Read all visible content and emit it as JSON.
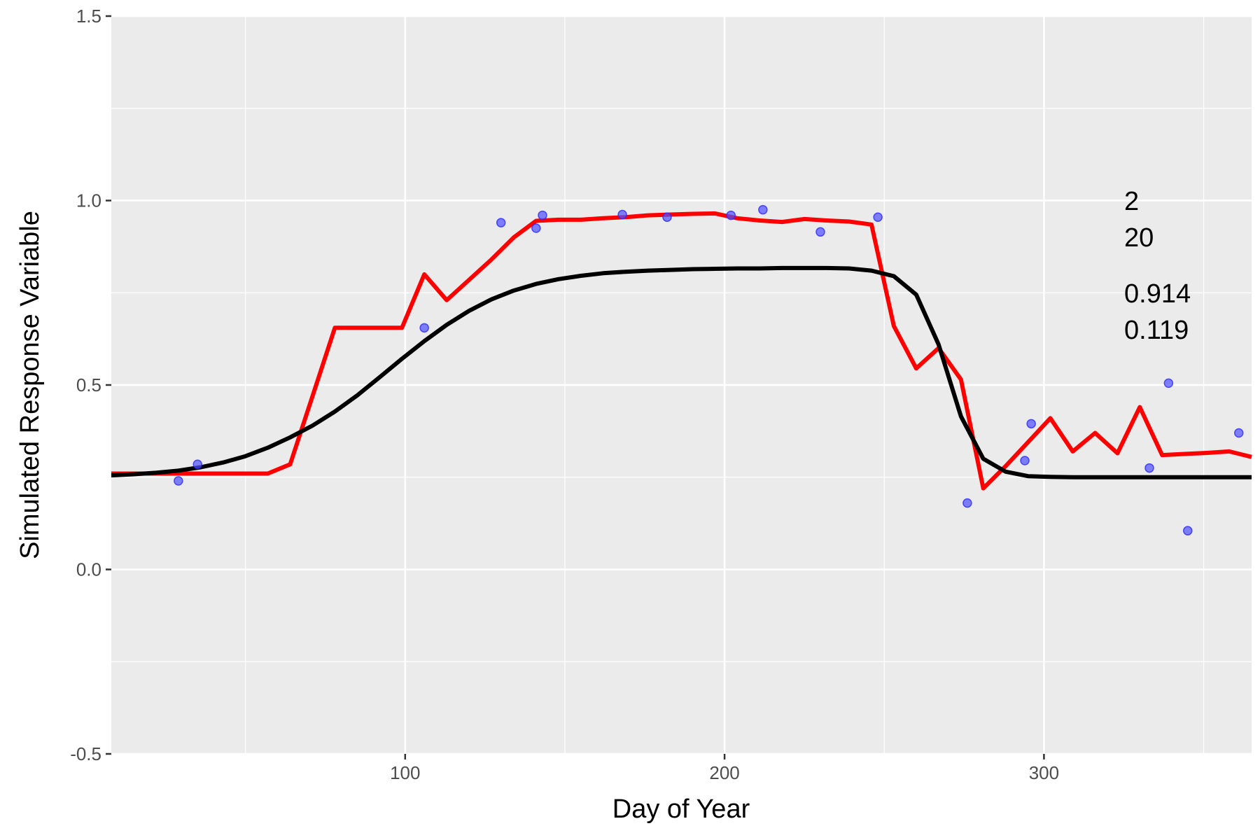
{
  "chart_data": {
    "type": "line",
    "xlabel": "Day of Year",
    "ylabel": "Simulated Response Variable",
    "xlim": [
      8,
      365
    ],
    "ylim": [
      -0.5,
      1.5
    ],
    "x_ticks": [
      100,
      200,
      300
    ],
    "x_minor": [
      50,
      150,
      250,
      350
    ],
    "y_ticks": [
      -0.5,
      0.0,
      0.5,
      1.0,
      1.5
    ],
    "y_tick_labels": [
      "-0.5",
      "0.0",
      "0.5",
      "1.0",
      "1.5"
    ],
    "y_minor": [
      -0.25,
      0.25,
      0.75,
      1.25
    ],
    "grid": true,
    "panel_background": "#ebebeb",
    "annotations": [
      "2",
      "20",
      "0.914",
      "0.119"
    ],
    "points": {
      "color": "#4f4fff",
      "x": [
        29,
        35,
        106,
        130,
        141,
        143,
        168,
        182,
        202,
        212,
        230,
        248,
        276,
        294,
        296,
        333,
        339,
        345,
        361
      ],
      "y": [
        0.24,
        0.285,
        0.655,
        0.94,
        0.925,
        0.96,
        0.962,
        0.955,
        0.96,
        0.975,
        0.915,
        0.955,
        0.18,
        0.295,
        0.395,
        0.275,
        0.505,
        0.105,
        0.37
      ]
    },
    "series": [
      {
        "color": "#ff0000",
        "x": [
          8,
          15,
          22,
          29,
          36,
          43,
          50,
          57,
          64,
          71,
          78,
          85,
          92,
          99,
          106,
          113,
          120,
          127,
          134,
          141,
          148,
          155,
          162,
          169,
          176,
          183,
          190,
          197,
          204,
          211,
          218,
          225,
          232,
          239,
          246,
          253,
          260,
          267,
          274,
          281,
          288,
          295,
          302,
          309,
          316,
          323,
          330,
          337,
          344,
          351,
          358,
          365
        ],
        "y": [
          0.26,
          0.26,
          0.26,
          0.26,
          0.26,
          0.26,
          0.26,
          0.26,
          0.285,
          0.47,
          0.655,
          0.655,
          0.655,
          0.655,
          0.8,
          0.73,
          0.785,
          0.84,
          0.9,
          0.945,
          0.948,
          0.948,
          0.952,
          0.955,
          0.96,
          0.962,
          0.964,
          0.965,
          0.952,
          0.946,
          0.942,
          0.95,
          0.946,
          0.943,
          0.935,
          0.66,
          0.545,
          0.6,
          0.515,
          0.22,
          0.28,
          0.345,
          0.41,
          0.32,
          0.37,
          0.315,
          0.44,
          0.31,
          0.313,
          0.316,
          0.32,
          0.305
        ]
      },
      {
        "color": "#000000",
        "x": [
          8,
          15,
          22,
          29,
          36,
          43,
          50,
          57,
          64,
          71,
          78,
          85,
          92,
          99,
          106,
          113,
          120,
          127,
          134,
          141,
          148,
          155,
          162,
          169,
          176,
          183,
          190,
          197,
          204,
          211,
          218,
          225,
          232,
          239,
          246,
          253,
          260,
          267,
          274,
          281,
          288,
          295,
          302,
          309,
          316,
          323,
          330,
          337,
          344,
          351,
          358,
          365
        ],
        "y": [
          0.255,
          0.258,
          0.262,
          0.268,
          0.277,
          0.29,
          0.307,
          0.33,
          0.358,
          0.39,
          0.428,
          0.472,
          0.521,
          0.571,
          0.619,
          0.663,
          0.701,
          0.732,
          0.756,
          0.774,
          0.787,
          0.796,
          0.803,
          0.807,
          0.81,
          0.812,
          0.814,
          0.815,
          0.816,
          0.816,
          0.817,
          0.817,
          0.817,
          0.816,
          0.81,
          0.795,
          0.745,
          0.61,
          0.415,
          0.3,
          0.265,
          0.253,
          0.251,
          0.25,
          0.25,
          0.25,
          0.25,
          0.25,
          0.25,
          0.25,
          0.25,
          0.25
        ]
      }
    ]
  }
}
